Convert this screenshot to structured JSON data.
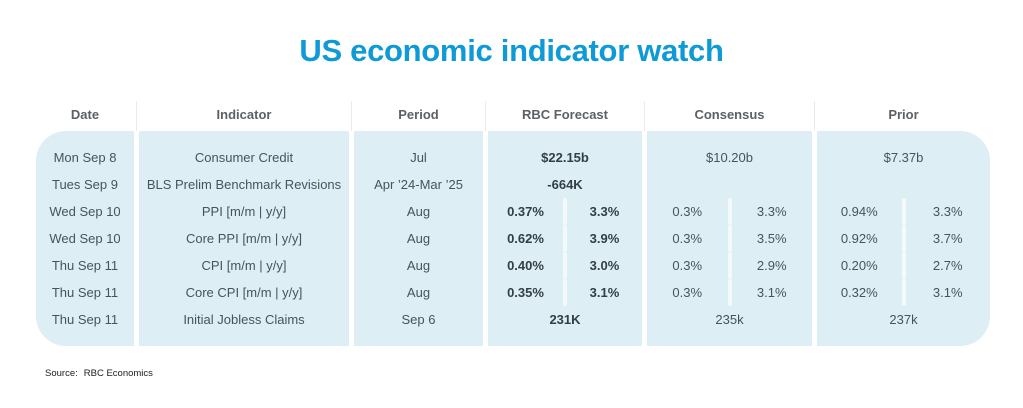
{
  "title": "US economic indicator watch",
  "source": {
    "label": "Source:",
    "value": "RBC Economics"
  },
  "accent_color": "#0e9ad6",
  "panel_color": "#ddeef5",
  "table": {
    "headers": [
      "Date",
      "Indicator",
      "Period",
      "RBC Forecast",
      "Consensus",
      "Prior"
    ],
    "rows": [
      {
        "date": "Mon Sep 8",
        "indicator": "Consumer Credit",
        "period": "Jul",
        "rbc": "$22.15b",
        "consensus": "$10.20b",
        "prior": "$7.37b"
      },
      {
        "date": "Tues Sep 9",
        "indicator": "BLS Prelim Benchmark Revisions",
        "period": "Apr ’24-Mar ’25",
        "rbc": "-664K",
        "consensus": "",
        "prior": ""
      },
      {
        "date": "Wed Sep 10",
        "indicator": "PPI [m/m | y/y]",
        "period": "Aug",
        "rbc_mm": "0.37%",
        "rbc_yy": "3.3%",
        "consensus_mm": "0.3%",
        "consensus_yy": "3.3%",
        "prior_mm": "0.94%",
        "prior_yy": "3.3%"
      },
      {
        "date": "Wed Sep 10",
        "indicator": "Core PPI [m/m | y/y]",
        "period": "Aug",
        "rbc_mm": "0.62%",
        "rbc_yy": "3.9%",
        "consensus_mm": "0.3%",
        "consensus_yy": "3.5%",
        "prior_mm": "0.92%",
        "prior_yy": "3.7%"
      },
      {
        "date": "Thu Sep 11",
        "indicator": "CPI [m/m | y/y]",
        "period": "Aug",
        "rbc_mm": "0.40%",
        "rbc_yy": "3.0%",
        "consensus_mm": "0.3%",
        "consensus_yy": "2.9%",
        "prior_mm": "0.20%",
        "prior_yy": "2.7%"
      },
      {
        "date": "Thu Sep 11",
        "indicator": "Core CPI [m/m | y/y]",
        "period": "Aug",
        "rbc_mm": "0.35%",
        "rbc_yy": "3.1%",
        "consensus_mm": "0.3%",
        "consensus_yy": "3.1%",
        "prior_mm": "0.32%",
        "prior_yy": "3.1%"
      },
      {
        "date": "Thu Sep 11",
        "indicator": "Initial Jobless Claims",
        "period": "Sep 6",
        "rbc": "231K",
        "consensus": "235k",
        "prior": "237k"
      }
    ]
  },
  "chart_data": {
    "type": "table",
    "title": "US economic indicator watch",
    "columns": [
      "Date",
      "Indicator",
      "Period",
      "RBC Forecast",
      "Consensus",
      "Prior"
    ],
    "rows": [
      [
        "Mon Sep 8",
        "Consumer Credit",
        "Jul",
        "$22.15b",
        "$10.20b",
        "$7.37b"
      ],
      [
        "Tues Sep 9",
        "BLS Prelim Benchmark Revisions",
        "Apr ’24-Mar ’25",
        "-664K",
        "",
        ""
      ],
      [
        "Wed Sep 10",
        "PPI [m/m | y/y]",
        "Aug",
        "0.37% | 3.3%",
        "0.3% | 3.3%",
        "0.94% | 3.3%"
      ],
      [
        "Wed Sep 10",
        "Core PPI [m/m | y/y]",
        "Aug",
        "0.62% | 3.9%",
        "0.3% | 3.5%",
        "0.92% | 3.7%"
      ],
      [
        "Thu Sep 11",
        "CPI [m/m | y/y]",
        "Aug",
        "0.40% | 3.0%",
        "0.3% | 2.9%",
        "0.20% | 2.7%"
      ],
      [
        "Thu Sep 11",
        "Core CPI [m/m | y/y]",
        "Aug",
        "0.35% | 3.1%",
        "0.3% | 3.1%",
        "0.32% | 3.1%"
      ],
      [
        "Thu Sep 11",
        "Initial Jobless Claims",
        "Sep 6",
        "231K",
        "235k",
        "237k"
      ]
    ],
    "source": "Source: RBC Economics"
  }
}
